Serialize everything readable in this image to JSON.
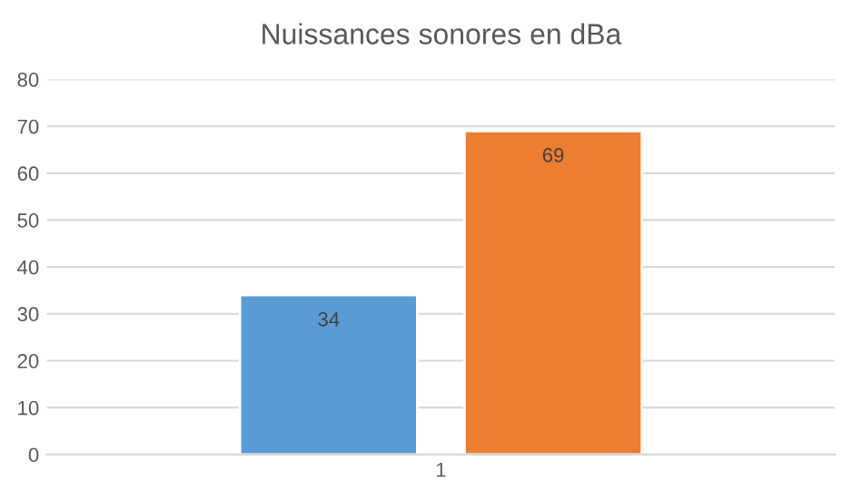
{
  "chart_data": {
    "type": "bar",
    "title": "Nuissances sonores en dBa",
    "categories": [
      "1"
    ],
    "series": [
      {
        "color": "#5b9bd5",
        "values": [
          34
        ]
      },
      {
        "color": "#ed7d31",
        "values": [
          69
        ]
      }
    ],
    "ylim": [
      0,
      80
    ],
    "yticks": [
      0,
      10,
      20,
      30,
      40,
      50,
      60,
      70,
      80
    ],
    "grid": "y",
    "data_labels": true,
    "legend": false
  }
}
